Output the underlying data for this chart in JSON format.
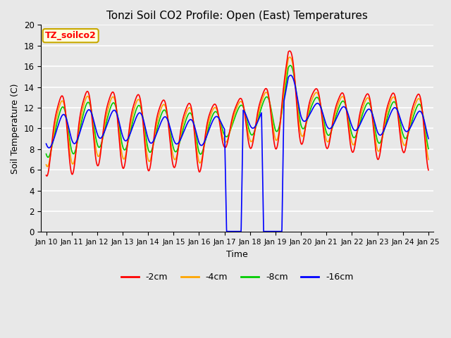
{
  "title": "Tonzi Soil CO2 Profile: Open (East) Temperatures",
  "xlabel": "Time",
  "ylabel": "Soil Temperature (C)",
  "ylim": [
    0,
    20
  ],
  "legend_label": "TZ_soilco2",
  "series_labels": [
    "-2cm",
    "-4cm",
    "-8cm",
    "-16cm"
  ],
  "series_colors": [
    "#ff0000",
    "#ffa500",
    "#00cc00",
    "#0000ff"
  ],
  "xtick_labels": [
    "Jan 10",
    "Jan 11",
    "Jan 12",
    "Jan 13",
    "Jan 14",
    "Jan 15",
    "Jan 16",
    "Jan 17",
    "Jan 18",
    "Jan 19",
    "Jan 20",
    "Jan 21",
    "Jan 22",
    "Jan 23",
    "Jan 24",
    "Jan 25"
  ],
  "ytick_vals": [
    0,
    2,
    4,
    6,
    8,
    10,
    12,
    14,
    16,
    18,
    20
  ],
  "linewidth": 1.2,
  "plot_bg": "#e8e8e8",
  "fig_bg": "#e8e8e8"
}
